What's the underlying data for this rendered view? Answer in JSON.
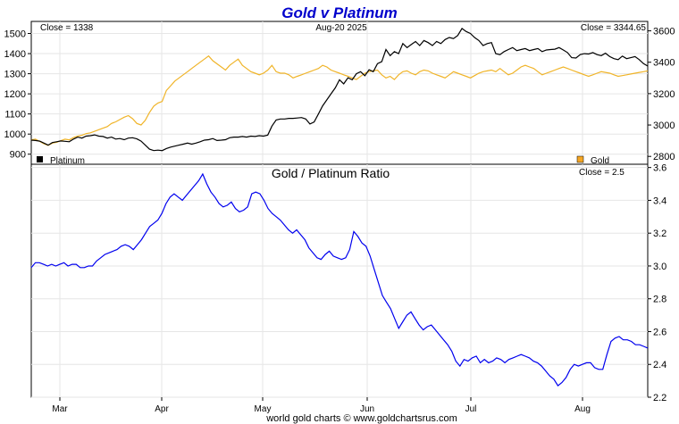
{
  "title": "Gold v Platinum",
  "footer": "world gold charts © www.goldchartsrus.com",
  "colors": {
    "title": "#0000cc",
    "gold": "#f0b428",
    "platinum": "#000000",
    "ratio": "#0000ee",
    "grid": "#e6e6e6",
    "gold_swatch": "#f5a623"
  },
  "chart_data": [
    {
      "type": "line",
      "name": "price-panel",
      "date_label": "Aug-20  2025",
      "left_close": "Close = 1338",
      "right_close": "Close = 3344.65",
      "legend": [
        {
          "name": "Platinum",
          "color": "#000000"
        },
        {
          "name": "Gold",
          "color": "#f5a623"
        }
      ],
      "left_axis": {
        "series": "Platinum",
        "ylim": [
          850,
          1560
        ],
        "ticks": [
          900,
          1000,
          1100,
          1200,
          1300,
          1400,
          1500
        ]
      },
      "right_axis": {
        "series": "Gold",
        "ylim": [
          2750,
          3660
        ],
        "ticks": [
          2800,
          3000,
          3200,
          3400,
          3600
        ]
      },
      "x_months": [
        "Mar",
        "Apr",
        "May",
        "Jun",
        "Jul",
        "Aug"
      ],
      "grid": true,
      "series": [
        {
          "name": "Platinum",
          "axis": "left",
          "x": [
            1,
            2,
            3,
            4,
            5,
            6,
            7,
            8,
            9,
            10,
            11,
            12,
            13,
            14,
            15,
            16,
            17,
            18,
            19,
            20,
            21,
            22,
            23,
            24,
            25,
            26,
            27,
            28,
            29,
            30,
            31,
            32,
            33,
            34,
            35,
            36,
            37,
            38,
            39,
            40,
            41,
            42,
            43,
            44,
            45,
            46,
            47,
            48,
            49,
            50,
            51,
            52,
            53,
            54,
            55,
            56,
            57,
            58,
            59,
            60,
            61,
            62,
            63,
            64,
            65,
            66,
            67,
            68,
            69,
            70,
            71,
            72,
            73,
            74,
            75,
            76,
            77,
            78,
            79,
            80,
            81,
            82,
            83,
            84,
            85,
            86,
            87,
            88,
            89,
            90,
            91,
            92,
            93,
            94,
            95,
            96,
            97,
            98,
            99,
            100,
            101,
            102,
            103,
            104,
            105,
            106,
            107,
            108,
            109,
            110,
            111,
            112,
            113,
            114,
            115,
            116,
            117,
            118,
            119,
            120,
            121,
            122,
            123,
            124,
            125,
            126,
            127,
            128,
            129,
            130,
            131,
            132,
            133,
            134,
            135,
            136,
            137,
            138,
            139,
            140,
            141,
            142,
            143,
            144,
            145,
            146,
            147
          ],
          "values": [
            970,
            968,
            965,
            955,
            945,
            958,
            962,
            966,
            964,
            962,
            975,
            985,
            980,
            990,
            992,
            996,
            990,
            988,
            980,
            985,
            975,
            978,
            972,
            980,
            982,
            976,
            965,
            945,
            925,
            918,
            920,
            918,
            928,
            935,
            940,
            945,
            950,
            955,
            950,
            955,
            962,
            970,
            972,
            978,
            968,
            970,
            972,
            982,
            985,
            985,
            988,
            985,
            990,
            988,
            992,
            990,
            995,
            1040,
            1070,
            1075,
            1075,
            1078,
            1078,
            1080,
            1082,
            1075,
            1050,
            1060,
            1100,
            1140,
            1170,
            1200,
            1230,
            1270,
            1250,
            1280,
            1270,
            1300,
            1310,
            1290,
            1320,
            1310,
            1350,
            1360,
            1420,
            1390,
            1410,
            1400,
            1450,
            1430,
            1445,
            1460,
            1440,
            1465,
            1455,
            1440,
            1460,
            1450,
            1470,
            1480,
            1475,
            1490,
            1525,
            1510,
            1500,
            1480,
            1465,
            1440,
            1450,
            1455,
            1400,
            1395,
            1410,
            1420,
            1430,
            1415,
            1420,
            1425,
            1415,
            1420,
            1425,
            1410,
            1418,
            1420,
            1422,
            1430,
            1418,
            1405,
            1380,
            1378,
            1395,
            1400,
            1398,
            1405,
            1395,
            1390,
            1402,
            1385,
            1375,
            1370,
            1388,
            1375,
            1380,
            1385,
            1370,
            1350,
            1338
          ]
        },
        {
          "name": "Gold",
          "axis": "right",
          "x": [
            1,
            2,
            3,
            4,
            5,
            6,
            7,
            8,
            9,
            10,
            11,
            12,
            13,
            14,
            15,
            16,
            17,
            18,
            19,
            20,
            21,
            22,
            23,
            24,
            25,
            26,
            27,
            28,
            29,
            30,
            31,
            32,
            33,
            34,
            35,
            36,
            37,
            38,
            39,
            40,
            41,
            42,
            43,
            44,
            45,
            46,
            47,
            48,
            49,
            50,
            51,
            52,
            53,
            54,
            55,
            56,
            57,
            58,
            59,
            60,
            61,
            62,
            63,
            64,
            65,
            66,
            67,
            68,
            69,
            70,
            71,
            72,
            73,
            74,
            75,
            76,
            77,
            78,
            79,
            80,
            81,
            82,
            83,
            84,
            85,
            86,
            87,
            88,
            89,
            90,
            91,
            92,
            93,
            94,
            95,
            96,
            97,
            98,
            99,
            100,
            101,
            102,
            103,
            104,
            105,
            106,
            107,
            108,
            109,
            110,
            111,
            112,
            113,
            114,
            115,
            116,
            117,
            118,
            119,
            120,
            121,
            122,
            123,
            124,
            125,
            126,
            127,
            128,
            129,
            130,
            131,
            132,
            133,
            134,
            135,
            136,
            137,
            138,
            139,
            140,
            141,
            142,
            143,
            144,
            145,
            146,
            147
          ],
          "values": [
            2905,
            2910,
            2895,
            2880,
            2870,
            2885,
            2890,
            2900,
            2910,
            2905,
            2920,
            2930,
            2935,
            2945,
            2950,
            2960,
            2970,
            2980,
            2990,
            3010,
            3020,
            3035,
            3050,
            3060,
            3040,
            3010,
            3000,
            3030,
            3080,
            3120,
            3140,
            3150,
            3220,
            3250,
            3280,
            3300,
            3320,
            3340,
            3360,
            3380,
            3400,
            3420,
            3440,
            3410,
            3390,
            3370,
            3350,
            3380,
            3400,
            3420,
            3380,
            3360,
            3340,
            3330,
            3320,
            3330,
            3350,
            3380,
            3340,
            3330,
            3330,
            3320,
            3300,
            3310,
            3320,
            3330,
            3340,
            3350,
            3360,
            3380,
            3370,
            3350,
            3340,
            3330,
            3320,
            3310,
            3300,
            3290,
            3310,
            3330,
            3340,
            3345,
            3350,
            3320,
            3300,
            3310,
            3290,
            3320,
            3340,
            3345,
            3330,
            3320,
            3340,
            3350,
            3345,
            3330,
            3320,
            3310,
            3300,
            3320,
            3340,
            3330,
            3320,
            3310,
            3300,
            3315,
            3330,
            3340,
            3345,
            3350,
            3340,
            3360,
            3340,
            3320,
            3330,
            3350,
            3370,
            3380,
            3370,
            3360,
            3340,
            3320,
            3330,
            3340,
            3350,
            3360,
            3370,
            3360,
            3350,
            3340,
            3330,
            3320,
            3310,
            3320,
            3330,
            3340,
            3335,
            3330,
            3320,
            3310,
            3315,
            3320,
            3325,
            3330,
            3335,
            3340,
            3344.65
          ]
        }
      ]
    },
    {
      "type": "line",
      "name": "ratio-panel",
      "title": "Gold  /  Platinum Ratio",
      "right_close": "Close = 2.5",
      "right_axis": {
        "ylim": [
          2.2,
          3.62
        ],
        "ticks": [
          2.2,
          2.4,
          2.6,
          2.8,
          3.0,
          3.2,
          3.4,
          3.6
        ]
      },
      "grid": true,
      "series": [
        {
          "name": "Gold / Platinum Ratio",
          "values": [
            2.99,
            3.02,
            3.02,
            3.01,
            3.0,
            3.01,
            3.0,
            3.01,
            3.02,
            3.0,
            3.01,
            3.01,
            2.99,
            2.99,
            3.0,
            3.0,
            3.03,
            3.05,
            3.07,
            3.08,
            3.09,
            3.1,
            3.12,
            3.13,
            3.12,
            3.1,
            3.13,
            3.16,
            3.2,
            3.24,
            3.26,
            3.28,
            3.32,
            3.38,
            3.42,
            3.44,
            3.42,
            3.4,
            3.43,
            3.46,
            3.49,
            3.52,
            3.56,
            3.5,
            3.45,
            3.42,
            3.38,
            3.36,
            3.37,
            3.39,
            3.35,
            3.33,
            3.34,
            3.36,
            3.44,
            3.45,
            3.44,
            3.4,
            3.35,
            3.32,
            3.3,
            3.28,
            3.25,
            3.22,
            3.2,
            3.22,
            3.19,
            3.16,
            3.11,
            3.08,
            3.05,
            3.04,
            3.07,
            3.09,
            3.06,
            3.05,
            3.04,
            3.05,
            3.1,
            3.21,
            3.18,
            3.14,
            3.12,
            3.06,
            2.98,
            2.9,
            2.82,
            2.78,
            2.74,
            2.68,
            2.62,
            2.66,
            2.7,
            2.72,
            2.68,
            2.64,
            2.61,
            2.63,
            2.64,
            2.61,
            2.58,
            2.55,
            2.52,
            2.48,
            2.42,
            2.39,
            2.43,
            2.42,
            2.44,
            2.45,
            2.41,
            2.43,
            2.41,
            2.42,
            2.44,
            2.43,
            2.41,
            2.43,
            2.44,
            2.45,
            2.46,
            2.45,
            2.44,
            2.42,
            2.41,
            2.39,
            2.36,
            2.33,
            2.31,
            2.27,
            2.29,
            2.32,
            2.37,
            2.4,
            2.39,
            2.4,
            2.41,
            2.41,
            2.38,
            2.37,
            2.37,
            2.46,
            2.54,
            2.56,
            2.57,
            2.55,
            2.55,
            2.54,
            2.52,
            2.52,
            2.51,
            2.5
          ]
        }
      ]
    }
  ]
}
